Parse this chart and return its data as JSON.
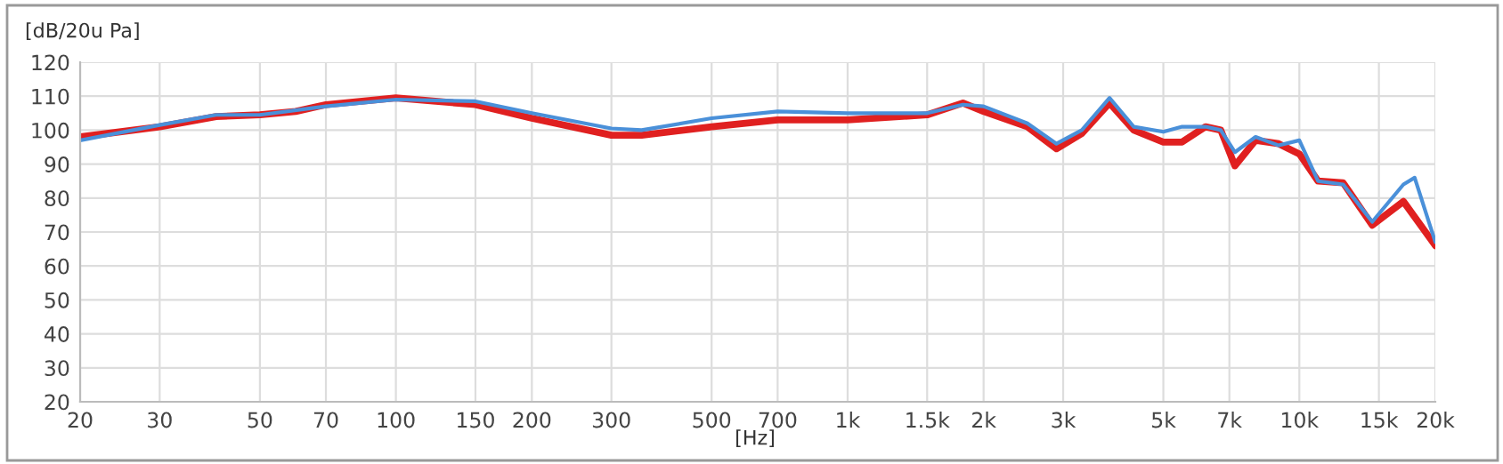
{
  "chart_data": {
    "type": "line",
    "xlabel": "[Hz]",
    "ylabel": "[dB/20u Pa]",
    "log": "x",
    "grid": true,
    "legend": false,
    "marker": "none",
    "line_style": "solid",
    "xlim": [
      20,
      20000
    ],
    "ylim": [
      20,
      120
    ],
    "xticks": [
      20,
      30,
      50,
      70,
      100,
      150,
      200,
      300,
      500,
      700,
      {
        "value": 1000,
        "label": "1k"
      },
      {
        "value": 1500,
        "label": "1.5k"
      },
      {
        "value": 2000,
        "label": "2k"
      },
      {
        "value": 3000,
        "label": "3k"
      },
      {
        "value": 5000,
        "label": "5k"
      },
      {
        "value": 7000,
        "label": "7k"
      },
      {
        "value": 10000,
        "label": "10k"
      },
      {
        "value": 15000,
        "label": "15k"
      },
      {
        "value": 20000,
        "label": "20k"
      }
    ],
    "yticks": [
      20,
      30,
      40,
      50,
      60,
      70,
      80,
      90,
      100,
      110,
      120
    ],
    "series": [
      {
        "color": "#e02020",
        "x": [
          20,
          30,
          40,
          50,
          60,
          70,
          100,
          150,
          200,
          300,
          350,
          500,
          700,
          1000,
          1500,
          1800,
          2000,
          2500,
          2900,
          3300,
          3800,
          4300,
          5000,
          5500,
          6200,
          6700,
          7200,
          8000,
          9000,
          10000,
          11000,
          12500,
          14500,
          17000,
          20000
        ],
        "values": [
          98,
          101,
          104,
          104.5,
          105.5,
          107.5,
          109.5,
          107.5,
          103.5,
          98.5,
          98.5,
          101,
          103,
          103,
          104.5,
          108,
          105.5,
          101,
          94.5,
          99,
          108,
          100,
          96.5,
          96.5,
          101,
          100,
          89.5,
          97,
          96,
          93,
          85,
          84.5,
          72,
          79,
          66
        ]
      },
      {
        "color": "#4a90d9",
        "x": [
          20,
          30,
          40,
          50,
          70,
          100,
          150,
          200,
          300,
          350,
          500,
          700,
          1000,
          1500,
          1800,
          2000,
          2500,
          2900,
          3300,
          3800,
          4300,
          5000,
          5500,
          6200,
          6700,
          7200,
          8000,
          9000,
          10000,
          11000,
          12500,
          14500,
          17000,
          18000,
          20000
        ],
        "values": [
          97,
          101.5,
          104.5,
          104.5,
          107,
          109,
          108.5,
          105,
          100.5,
          100,
          103.5,
          105.5,
          105,
          105,
          107.5,
          107,
          102,
          96,
          100,
          109.5,
          101,
          99.5,
          101,
          101,
          100,
          93.5,
          98,
          95.5,
          97,
          85,
          84,
          73,
          84,
          86,
          67
        ]
      }
    ]
  }
}
